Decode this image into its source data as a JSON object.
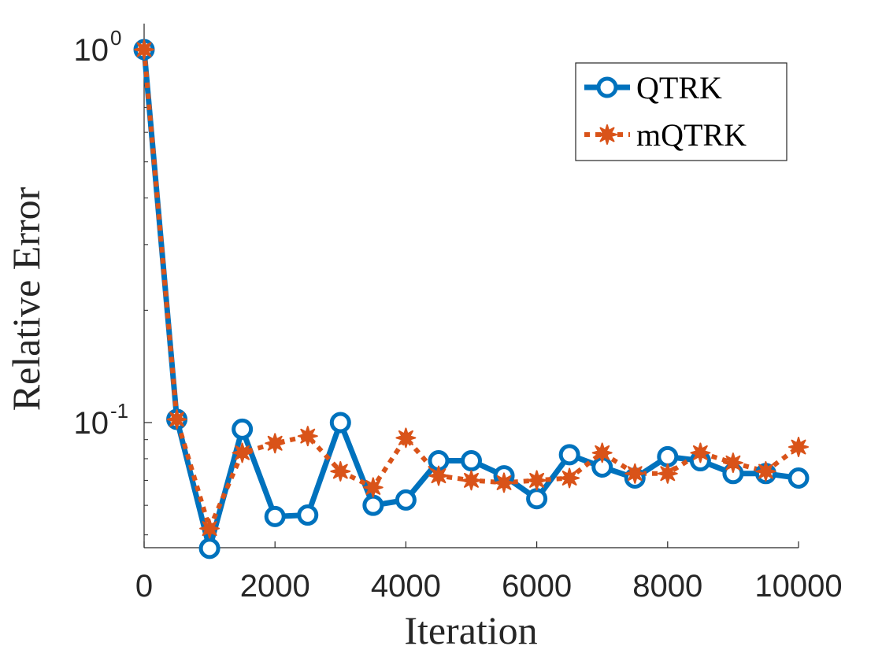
{
  "chart_data": {
    "type": "line",
    "xlabel": "Iteration",
    "ylabel": "Relative Error",
    "xlim": [
      0,
      10000
    ],
    "ylim": [
      0.048,
      1.0
    ],
    "yscale": "log",
    "xticks": [
      "0",
      "2000",
      "4000",
      "6000",
      "8000",
      "10000"
    ],
    "yticks": [
      {
        "base": "10",
        "exp": "-1",
        "value": 0.1
      },
      {
        "base": "10",
        "exp": "0",
        "value": 1
      }
    ],
    "x": [
      0,
      500,
      1000,
      1500,
      2000,
      2500,
      3000,
      3500,
      4000,
      4500,
      5000,
      5500,
      6000,
      6500,
      7000,
      7500,
      8000,
      8500,
      9000,
      9500,
      10000
    ],
    "series": [
      {
        "name": "QTRK",
        "color": "#0072bd",
        "linestyle": "solid",
        "marker": "circle",
        "values": [
          1.0,
          0.102,
          0.046,
          0.096,
          0.056,
          0.0565,
          0.1,
          0.06,
          0.062,
          0.079,
          0.079,
          0.072,
          0.0625,
          0.082,
          0.076,
          0.071,
          0.081,
          0.079,
          0.073,
          0.073,
          0.071
        ]
      },
      {
        "name": "mQTRK",
        "color": "#d95319",
        "linestyle": "dotted",
        "marker": "star",
        "values": [
          1.0,
          0.102,
          0.052,
          0.083,
          0.088,
          0.092,
          0.074,
          0.067,
          0.091,
          0.072,
          0.07,
          0.069,
          0.07,
          0.071,
          0.083,
          0.073,
          0.073,
          0.083,
          0.078,
          0.074,
          0.086
        ]
      }
    ],
    "grid": false,
    "legend_position": "top-right"
  }
}
